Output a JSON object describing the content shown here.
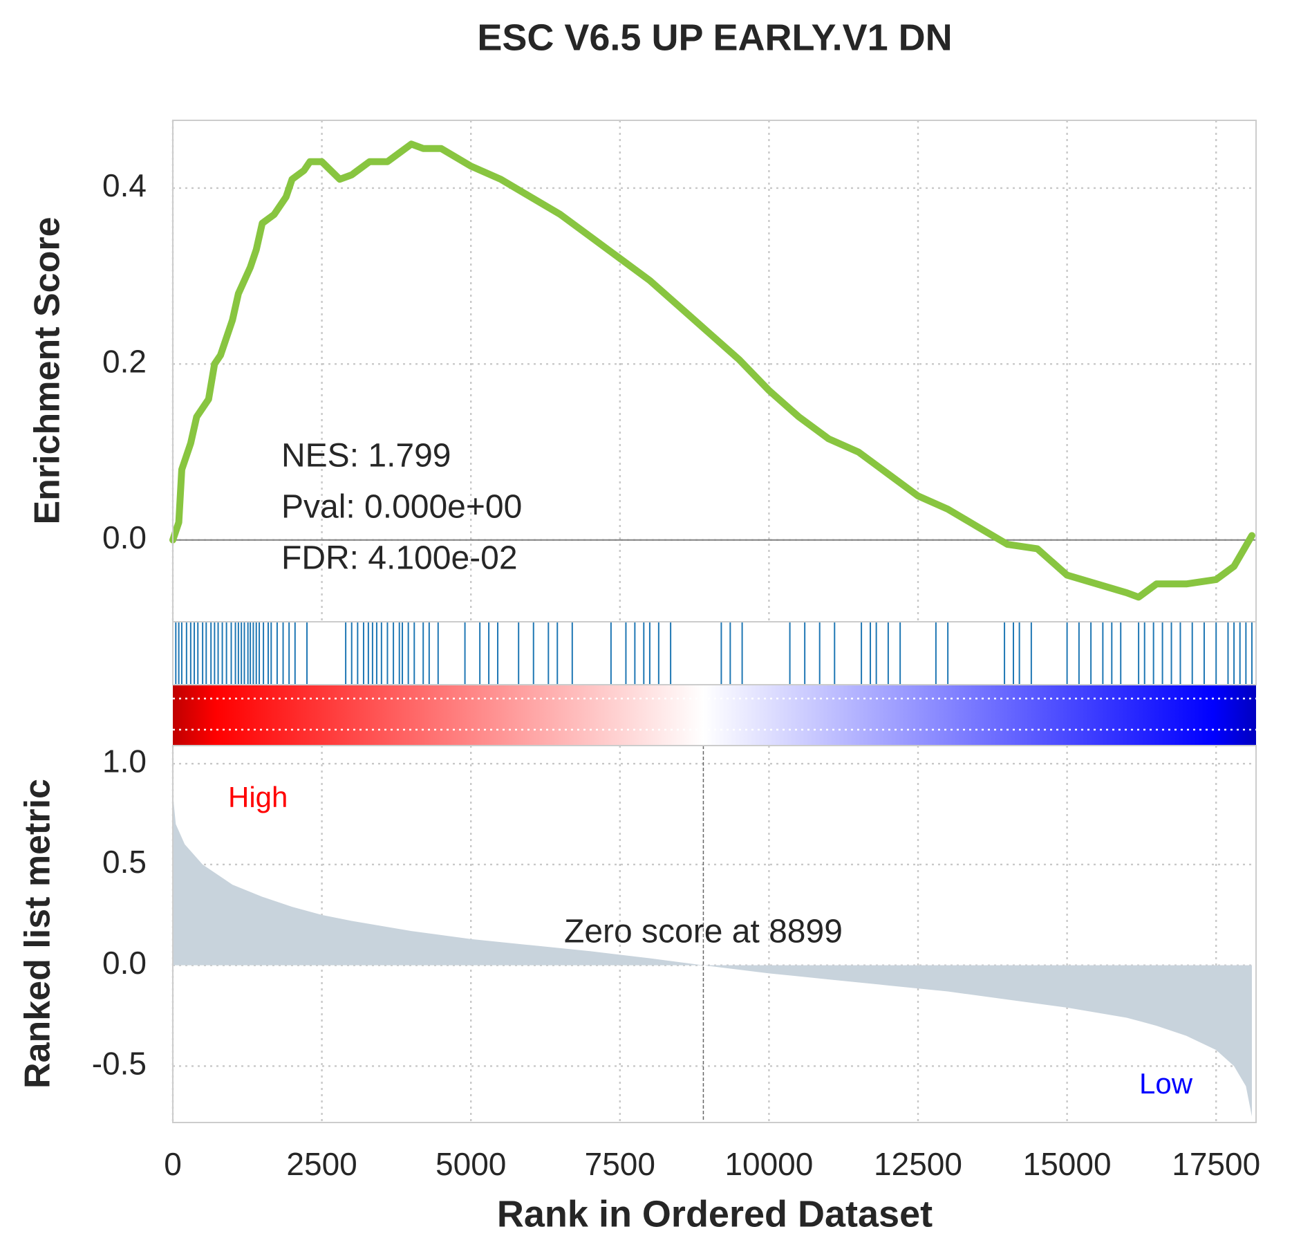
{
  "chart_data": [
    {
      "type": "line",
      "title": "ESC V6.5 UP EARLY.V1 DN",
      "ylabel": "Enrichment Score",
      "x": [
        0,
        100,
        150,
        300,
        400,
        600,
        700,
        800,
        900,
        1000,
        1100,
        1300,
        1400,
        1500,
        1700,
        1900,
        2000,
        2200,
        2300,
        2500,
        2800,
        3000,
        3300,
        3600,
        3800,
        4000,
        4200,
        4500,
        5000,
        5500,
        6000,
        6500,
        7000,
        7500,
        8000,
        8500,
        9000,
        9500,
        10000,
        10500,
        11000,
        11500,
        12000,
        12500,
        13000,
        13500,
        14000,
        14500,
        15000,
        15500,
        16000,
        16200,
        16500,
        17000,
        17500,
        17800,
        18100
      ],
      "values": [
        0,
        0.02,
        0.08,
        0.11,
        0.14,
        0.16,
        0.2,
        0.21,
        0.23,
        0.25,
        0.28,
        0.31,
        0.33,
        0.36,
        0.37,
        0.39,
        0.41,
        0.42,
        0.43,
        0.43,
        0.41,
        0.415,
        0.43,
        0.43,
        0.44,
        0.45,
        0.445,
        0.445,
        0.425,
        0.41,
        0.39,
        0.37,
        0.345,
        0.32,
        0.295,
        0.265,
        0.235,
        0.205,
        0.17,
        0.14,
        0.115,
        0.1,
        0.075,
        0.05,
        0.035,
        0.015,
        -0.005,
        -0.01,
        -0.04,
        -0.05,
        -0.06,
        -0.065,
        -0.05,
        -0.05,
        -0.045,
        -0.03,
        0.005
      ],
      "color": "#88c540",
      "hits": [
        50,
        100,
        150,
        230,
        300,
        360,
        420,
        500,
        560,
        640,
        700,
        760,
        830,
        900,
        980,
        1050,
        1100,
        1150,
        1200,
        1260,
        1300,
        1350,
        1400,
        1450,
        1520,
        1600,
        1650,
        1750,
        1850,
        1950,
        2050,
        2250,
        2900,
        3000,
        3100,
        3200,
        3280,
        3350,
        3420,
        3500,
        3600,
        3700,
        3800,
        3850,
        3950,
        4050,
        4200,
        4300,
        4450,
        4900,
        5150,
        5300,
        5450,
        5800,
        6050,
        6300,
        6450,
        6700,
        7350,
        7600,
        7750,
        7900,
        8000,
        8150,
        8350,
        9200,
        9350,
        9550,
        10350,
        10600,
        10850,
        11100,
        11550,
        11700,
        11800,
        12000,
        12200,
        12800,
        13000,
        13950,
        14100,
        14200,
        14400,
        15000,
        15200,
        15400,
        15600,
        15750,
        15900,
        16200,
        16300,
        16450,
        16600,
        16750,
        16900,
        17100,
        17300,
        17500,
        17700,
        17800,
        17900,
        18000,
        18100
      ],
      "hit_color": "#1f77b4",
      "annotations": [
        "NES: 1.799",
        "Pval: 0.000e+00",
        "FDR: 4.100e-02"
      ],
      "xlim": [
        0,
        18170
      ],
      "xticks": [
        0,
        2500,
        5000,
        7500,
        10000,
        12500,
        15000,
        17500
      ],
      "ylim": [
        -0.093,
        0.477
      ],
      "yticks": [
        {
          "value": 0,
          "label": "0.0"
        },
        0.2,
        0.4
      ],
      "grid": true
    },
    {
      "type": "area",
      "xlabel": "Rank in Ordered Dataset",
      "ylabel": "Ranked list metric",
      "x": [
        0,
        50,
        200,
        500,
        1000,
        1500,
        2000,
        2500,
        3000,
        4000,
        5000,
        6000,
        7000,
        8000,
        8899,
        10000,
        11000,
        12000,
        13000,
        14000,
        15000,
        16000,
        16500,
        17000,
        17500,
        17800,
        18000,
        18100
      ],
      "values": [
        0.85,
        0.7,
        0.6,
        0.5,
        0.4,
        0.34,
        0.29,
        0.25,
        0.22,
        0.17,
        0.13,
        0.1,
        0.07,
        0.035,
        0,
        -0.04,
        -0.07,
        -0.1,
        -0.13,
        -0.17,
        -0.21,
        -0.26,
        -0.3,
        -0.35,
        -0.42,
        -0.5,
        -0.6,
        -0.75
      ],
      "color": "#c8d3dc",
      "zero_score": 8899,
      "annotation": "Zero score at 8899",
      "high_label": "High",
      "low_label": "Low",
      "xlim": [
        0,
        18170
      ],
      "xticks": [
        0,
        2500,
        5000,
        7500,
        10000,
        12500,
        15000,
        17500
      ],
      "ylim": [
        -0.78,
        1.09
      ],
      "yticks": [
        -0.5,
        {
          "value": 0,
          "label": "0.0"
        },
        0.5,
        {
          "value": 1,
          "label": "1.0"
        }
      ],
      "grid": true
    }
  ]
}
